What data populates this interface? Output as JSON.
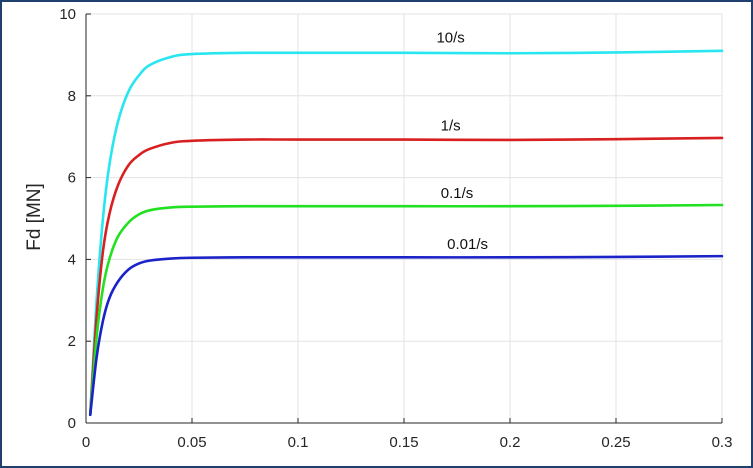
{
  "chart_data": {
    "type": "line",
    "title": "",
    "xlabel": "",
    "ylabel": "Fd [MN]",
    "xlim": [
      0,
      0.3
    ],
    "ylim": [
      0,
      10
    ],
    "xticks": [
      0,
      0.05,
      0.1,
      0.15,
      0.2,
      0.25,
      0.3
    ],
    "xtick_labels": [
      "0",
      "0.05",
      "0.1",
      "0.15",
      "0.2",
      "0.25",
      "0.3"
    ],
    "yticks": [
      0,
      2,
      4,
      6,
      8,
      10
    ],
    "ytick_labels": [
      "0",
      "2",
      "4",
      "6",
      "8",
      "10"
    ],
    "grid": true,
    "legend": "none",
    "series": [
      {
        "name": "10/s",
        "color": "#27e6f0",
        "x": [
          0.002,
          0.005,
          0.008,
          0.011,
          0.015,
          0.02,
          0.025,
          0.03,
          0.04,
          0.05,
          0.075,
          0.1,
          0.15,
          0.2,
          0.25,
          0.3
        ],
        "y": [
          0.2,
          3.0,
          5.0,
          6.3,
          7.35,
          8.1,
          8.5,
          8.75,
          8.95,
          9.02,
          9.05,
          9.05,
          9.05,
          9.04,
          9.06,
          9.1
        ]
      },
      {
        "name": "1/s",
        "color": "#d82020",
        "x": [
          0.002,
          0.005,
          0.008,
          0.011,
          0.015,
          0.02,
          0.025,
          0.03,
          0.04,
          0.05,
          0.075,
          0.1,
          0.15,
          0.2,
          0.25,
          0.3
        ],
        "y": [
          0.2,
          2.6,
          4.2,
          5.1,
          5.8,
          6.3,
          6.55,
          6.7,
          6.85,
          6.9,
          6.93,
          6.93,
          6.93,
          6.92,
          6.94,
          6.97
        ]
      },
      {
        "name": "0.1/s",
        "color": "#22e022",
        "x": [
          0.002,
          0.005,
          0.008,
          0.011,
          0.015,
          0.02,
          0.025,
          0.03,
          0.04,
          0.05,
          0.075,
          0.1,
          0.15,
          0.2,
          0.25,
          0.3
        ],
        "y": [
          0.2,
          2.1,
          3.3,
          4.0,
          4.55,
          4.9,
          5.1,
          5.2,
          5.27,
          5.29,
          5.3,
          5.3,
          5.3,
          5.3,
          5.31,
          5.33
        ]
      },
      {
        "name": "0.01/s",
        "color": "#1a22c8",
        "x": [
          0.002,
          0.005,
          0.008,
          0.011,
          0.015,
          0.02,
          0.025,
          0.03,
          0.04,
          0.05,
          0.075,
          0.1,
          0.15,
          0.2,
          0.25,
          0.3
        ],
        "y": [
          0.2,
          1.6,
          2.5,
          3.05,
          3.45,
          3.75,
          3.9,
          3.97,
          4.02,
          4.04,
          4.05,
          4.05,
          4.05,
          4.05,
          4.06,
          4.08
        ]
      }
    ],
    "annotations": [
      {
        "text": "10/s",
        "x": 0.172,
        "y": 9.3
      },
      {
        "text": "1/s",
        "x": 0.172,
        "y": 7.15
      },
      {
        "text": "0.1/s",
        "x": 0.175,
        "y": 5.5
      },
      {
        "text": "0.01/s",
        "x": 0.18,
        "y": 4.25
      }
    ]
  }
}
